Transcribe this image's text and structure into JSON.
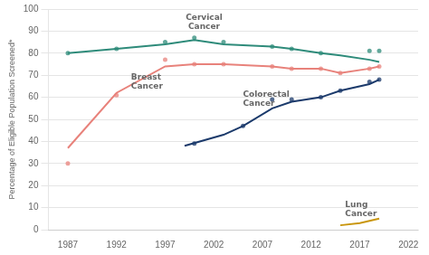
{
  "chart_data": {
    "type": "line",
    "ylabel": "Percentage of Eligible Population Screened*",
    "series": [
      {
        "type": "line",
        "color": "#2e8b7a",
        "x": [
          1987,
          1992,
          1997,
          2000,
          2003,
          2008,
          2010,
          2013,
          2015,
          2018,
          2019
        ],
        "values": [
          80,
          82,
          84,
          86,
          84,
          83,
          82,
          80,
          79,
          77,
          76
        ]
      },
      {
        "type": "scatter",
        "color": "#2e8b7a",
        "marker": "circle",
        "x": [
          1987,
          1992,
          1997,
          2000,
          2003,
          2008,
          2010,
          2013,
          2018,
          2019
        ],
        "values": [
          80,
          82,
          85,
          87,
          85,
          83,
          82,
          80,
          81,
          81
        ]
      },
      {
        "type": "line",
        "color": "#e8827b",
        "x": [
          1987,
          1992,
          1997,
          2000,
          2003,
          2008,
          2010,
          2013,
          2015,
          2018,
          2019
        ],
        "values": [
          37,
          62,
          74,
          75,
          75,
          74,
          73,
          73,
          71,
          73,
          74
        ]
      },
      {
        "type": "scatter",
        "color": "#e8827b",
        "marker": "circle",
        "x": [
          1987,
          1992,
          1997,
          2000,
          2003,
          2008,
          2010,
          2013,
          2015,
          2018,
          2019
        ],
        "values": [
          30,
          61,
          77,
          75,
          75,
          74,
          73,
          73,
          71,
          73,
          74
        ]
      },
      {
        "type": "line",
        "color": "#1b3a6b",
        "x": [
          1999,
          2003,
          2005,
          2008,
          2010,
          2013,
          2015,
          2018,
          2019
        ],
        "values": [
          38,
          43,
          47,
          55,
          58,
          60,
          63,
          66,
          68
        ]
      },
      {
        "type": "scatter",
        "color": "#1b3a6b",
        "marker": "circle",
        "x": [
          2000,
          2005,
          2008,
          2010,
          2013,
          2015,
          2018,
          2019
        ],
        "values": [
          39,
          47,
          59,
          59,
          60,
          63,
          67,
          68
        ]
      },
      {
        "type": "line",
        "color": "#c9960c",
        "x": [
          2015,
          2017,
          2019
        ],
        "values": [
          2,
          3,
          5
        ]
      }
    ],
    "annotations": [
      {
        "text": "Cervical\nCancer",
        "x": 2001,
        "y": 90
      },
      {
        "text": "Breast\nCancer",
        "x": 1993.5,
        "y": 67
      },
      {
        "text": "Colorectal\nCancer",
        "x": 2005,
        "y": 59
      },
      {
        "text": "Lung\nCancer",
        "x": 2015.5,
        "y": 9
      }
    ],
    "xlim": [
      1985,
      2023
    ],
    "ylim": [
      0,
      100
    ],
    "xticks": [
      1987,
      1992,
      1997,
      2002,
      2007,
      2012,
      2017,
      2022
    ],
    "yticks": [
      0,
      10,
      20,
      30,
      40,
      50,
      60,
      70,
      80,
      90,
      100
    ],
    "grid": "y"
  }
}
